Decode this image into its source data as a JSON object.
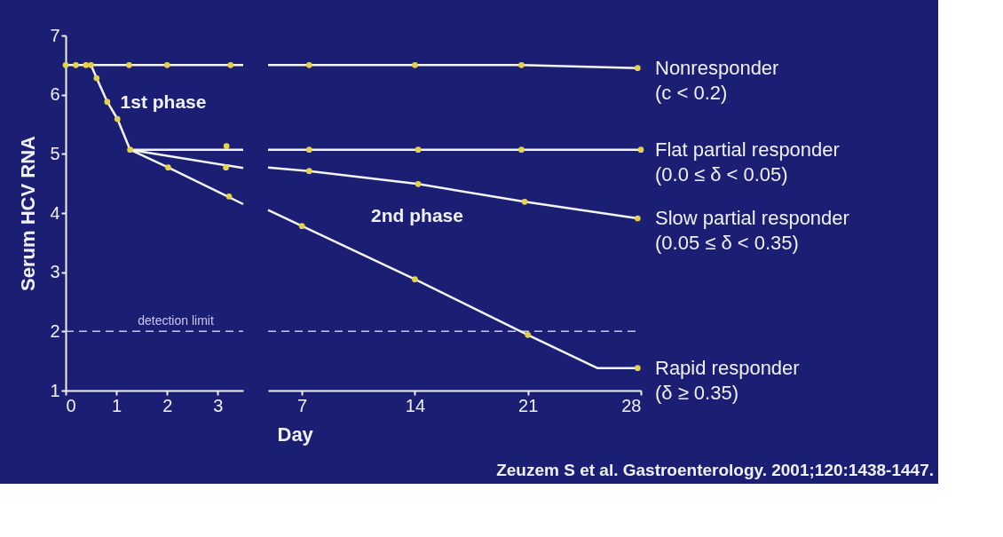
{
  "chart_data": [
    {
      "type": "line",
      "ylabel": "Serum HCV RNA",
      "xlim": [
        0,
        3.5
      ],
      "xticks": [
        0,
        1,
        2,
        3
      ],
      "ylim": [
        1,
        7
      ],
      "yticks": [
        1,
        2,
        3,
        4,
        5,
        6,
        7
      ],
      "series": [
        {
          "color": "#f4f4f4",
          "x": [
            0,
            3.5
          ],
          "values": [
            6.5,
            6.5
          ]
        },
        {
          "color": "#f4f4f4",
          "x": [
            0.5,
            0.61,
            0.82,
            1.02,
            1.27
          ],
          "values": [
            6.5,
            6.28,
            5.88,
            5.59,
            5.07
          ]
        },
        {
          "color": "#f4f4f4",
          "x": [
            1.27,
            3.5
          ],
          "values": [
            5.07,
            5.07
          ]
        },
        {
          "color": "#f4f4f4",
          "x": [
            1.27,
            3.5
          ],
          "values": [
            5.07,
            4.76
          ]
        },
        {
          "color": "#f4f4f4",
          "x": [
            1.27,
            2.02,
            3.5
          ],
          "values": [
            5.07,
            4.77,
            4.15
          ]
        },
        {
          "type": "scatter",
          "marker": "circle",
          "color": "#e6d24a",
          "x": [
            0,
            0.2,
            0.4,
            0.5,
            1.25,
            2,
            3.25,
            0.61,
            0.82,
            1.02,
            1.27,
            3.17,
            3.16,
            2.02,
            3.22
          ],
          "values": [
            6.5,
            6.5,
            6.5,
            6.5,
            6.5,
            6.5,
            6.5,
            6.28,
            5.88,
            5.59,
            5.07,
            5.13,
            4.77,
            4.77,
            4.28
          ]
        }
      ],
      "ref_lines": [
        {
          "axis": "y",
          "value": 2,
          "label": "detection limit",
          "color": "#c8c8f0",
          "line_style": "dashed"
        }
      ],
      "annotations": [
        "1st phase"
      ]
    },
    {
      "type": "line",
      "xlabel": "Day",
      "xlim": [
        4.9,
        28
      ],
      "xticks": [
        7,
        14,
        21,
        28
      ],
      "ylim": [
        1,
        7
      ],
      "yticks": [
        1,
        2,
        3,
        4,
        5,
        6,
        7
      ],
      "tick_labels": "x",
      "series": [
        {
          "name": "Nonresponder\n(c < 0.2)",
          "color": "#f4f4f4",
          "x": [
            4.9,
            7.45,
            14,
            20.6,
            27.8
          ],
          "values": [
            6.5,
            6.5,
            6.5,
            6.5,
            6.45
          ]
        },
        {
          "name": "Flat partial responder\n(0.0 ≤ δ < 0.05)",
          "color": "#f4f4f4",
          "x": [
            4.9,
            28
          ],
          "values": [
            5.07,
            5.07
          ]
        },
        {
          "name": "Slow partial responder\n(0.05 ≤ δ < 0.35)",
          "color": "#f4f4f4",
          "x": [
            4.9,
            7.45,
            14.2,
            20.8,
            27.8
          ],
          "values": [
            4.77,
            4.71,
            4.49,
            4.19,
            3.91
          ]
        },
        {
          "name": "Rapid responder\n(δ ≥ 0.35)",
          "color": "#f4f4f4",
          "x": [
            4.9,
            7,
            14,
            21,
            25.3,
            27.8
          ],
          "values": [
            4.05,
            3.78,
            2.88,
            1.94,
            1.38,
            1.38
          ]
        },
        {
          "type": "scatter",
          "marker": "circle",
          "color": "#e6d24a",
          "x": [
            7.45,
            14,
            20.6,
            27.8,
            7.45,
            14.2,
            20.6,
            28,
            7.45,
            14.2,
            20.8,
            27.8,
            7,
            14,
            21,
            27.8
          ],
          "values": [
            6.5,
            6.5,
            6.5,
            6.45,
            5.07,
            5.07,
            5.07,
            5.07,
            4.71,
            4.49,
            4.19,
            3.91,
            3.78,
            2.88,
            1.94,
            1.38
          ]
        }
      ],
      "ref_lines": [
        {
          "axis": "y",
          "value": 2,
          "color": "#c8c8f0",
          "line_style": "dashed"
        }
      ],
      "annotations": [
        "2nd phase",
        "Zeuzem S et al. Gastroenterology. 2001;120:1438-1447."
      ]
    }
  ]
}
